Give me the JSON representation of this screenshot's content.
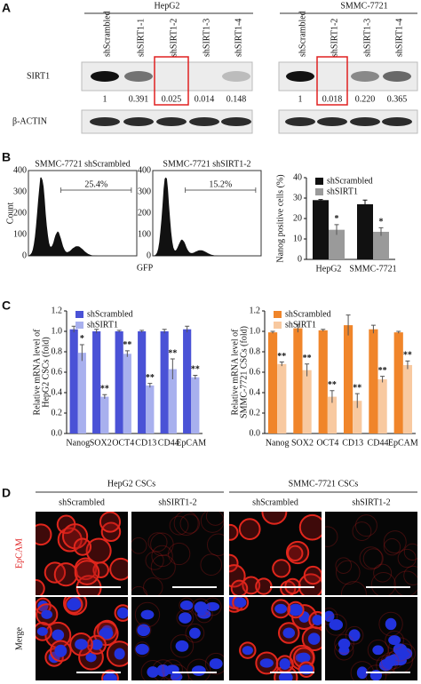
{
  "panel_a": {
    "label": "A",
    "cell_lines": [
      "HepG2",
      "SMMC-7721"
    ],
    "hepg2_lanes": [
      "shScrambled",
      "shSIRT1-1",
      "shSIRT1-2",
      "shSIRT1-3",
      "shSIRT1-4"
    ],
    "smmc_lanes": [
      "shScrambled",
      "shSIRT1-2",
      "shSIRT1-3",
      "shSIRT1-4"
    ],
    "rows": [
      "SIRT1",
      "β-ACTIN"
    ],
    "hepg2_ratios": [
      "1",
      "0.391",
      "0.025",
      "0.014",
      "0.148"
    ],
    "smmc_ratios": [
      "1",
      "0.018",
      "0.220",
      "0.365"
    ]
  },
  "panel_b": {
    "label": "B",
    "flow": [
      {
        "title": "SMMC-7721 shScrambled",
        "gate": "25.4%"
      },
      {
        "title": "SMMC-7721 shSIRT1-2",
        "gate": "15.2%"
      }
    ],
    "flow_ylabel": "Count",
    "flow_xlabel": "GFP",
    "flow_yticks": [
      "0",
      "100",
      "200",
      "300",
      "400"
    ]
  },
  "panel_c": {
    "label": "C"
  },
  "panel_d": {
    "label": "D",
    "groups": [
      "HepG2 CSCs",
      "SMMC-7721 CSCs"
    ],
    "columns": [
      "shScrambled",
      "shSIRT1-2",
      "shScrambled",
      "shSIRT1-2"
    ],
    "rows": [
      "EpCAM",
      "Merge"
    ]
  },
  "chart_data": [
    {
      "type": "bar",
      "ylabel": [
        "Nanog positive cells (%)"
      ],
      "categories": [
        "HepG2",
        "SMMC-7721"
      ],
      "series": [
        {
          "name": "shScrambled",
          "color": "#111111",
          "values": [
            29,
            27
          ],
          "errors": [
            0.3,
            2
          ]
        },
        {
          "name": "shSIRT1",
          "color": "#9a9a9a",
          "values": [
            14.5,
            13.5
          ],
          "errors": [
            2.5,
            2
          ],
          "significance": [
            "*",
            "*"
          ]
        }
      ],
      "ylim": [
        0,
        40
      ],
      "yticks": [
        0,
        10,
        20,
        30,
        40
      ],
      "legend": "upper left"
    },
    {
      "type": "bar",
      "ylabel": [
        "Relative mRNA level of",
        "HepG2 CSCs (fold)"
      ],
      "categories": [
        "Nanog",
        "SOX2",
        "OCT4",
        "CD13",
        "CD44",
        "EpCAM"
      ],
      "series": [
        {
          "name": "shScrambled",
          "color": "#4a52d6",
          "values": [
            1.02,
            1.0,
            1.0,
            1.0,
            1.0,
            1.02
          ],
          "errors": [
            0.03,
            0.02,
            0.01,
            0.01,
            0.02,
            0.03
          ]
        },
        {
          "name": "shSIRT1",
          "color": "#a8b0ee",
          "values": [
            0.79,
            0.36,
            0.78,
            0.47,
            0.63,
            0.55
          ],
          "errors": [
            0.08,
            0.02,
            0.03,
            0.02,
            0.1,
            0.02
          ],
          "significance": [
            "*",
            "**",
            "**",
            "**",
            "**",
            "**"
          ]
        }
      ],
      "ylim": [
        0,
        1.2
      ],
      "yticks": [
        {
          "value": 0,
          "label": "0.0"
        },
        0.2,
        0.4,
        0.6,
        0.8,
        {
          "value": 1,
          "label": "1.0"
        },
        1.2
      ],
      "legend": "upper left"
    },
    {
      "type": "bar",
      "ylabel": [
        "Relative mRNA level of",
        "SMMC-7721 CSCs (fold)"
      ],
      "categories": [
        "Nanog",
        "SOX2",
        "OCT4",
        "CD13",
        "CD44",
        "EpCAM"
      ],
      "series": [
        {
          "name": "shScrambled",
          "color": "#f0852a",
          "values": [
            0.99,
            1.03,
            1.01,
            1.06,
            1.02,
            0.99
          ],
          "errors": [
            0.01,
            0.04,
            0.01,
            0.1,
            0.04,
            0.01
          ]
        },
        {
          "name": "shSIRT1",
          "color": "#f8c9a0",
          "values": [
            0.68,
            0.62,
            0.36,
            0.32,
            0.53,
            0.67
          ],
          "errors": [
            0.02,
            0.06,
            0.06,
            0.07,
            0.03,
            0.04
          ],
          "significance": [
            "**",
            "**",
            "**",
            "**",
            "**",
            "**"
          ]
        }
      ],
      "ylim": [
        0,
        1.2
      ],
      "yticks": [
        {
          "value": 0,
          "label": "0.0"
        },
        0.2,
        0.4,
        0.6,
        0.8,
        {
          "value": 1,
          "label": "1.0"
        },
        1.2
      ],
      "legend": "upper left"
    }
  ]
}
